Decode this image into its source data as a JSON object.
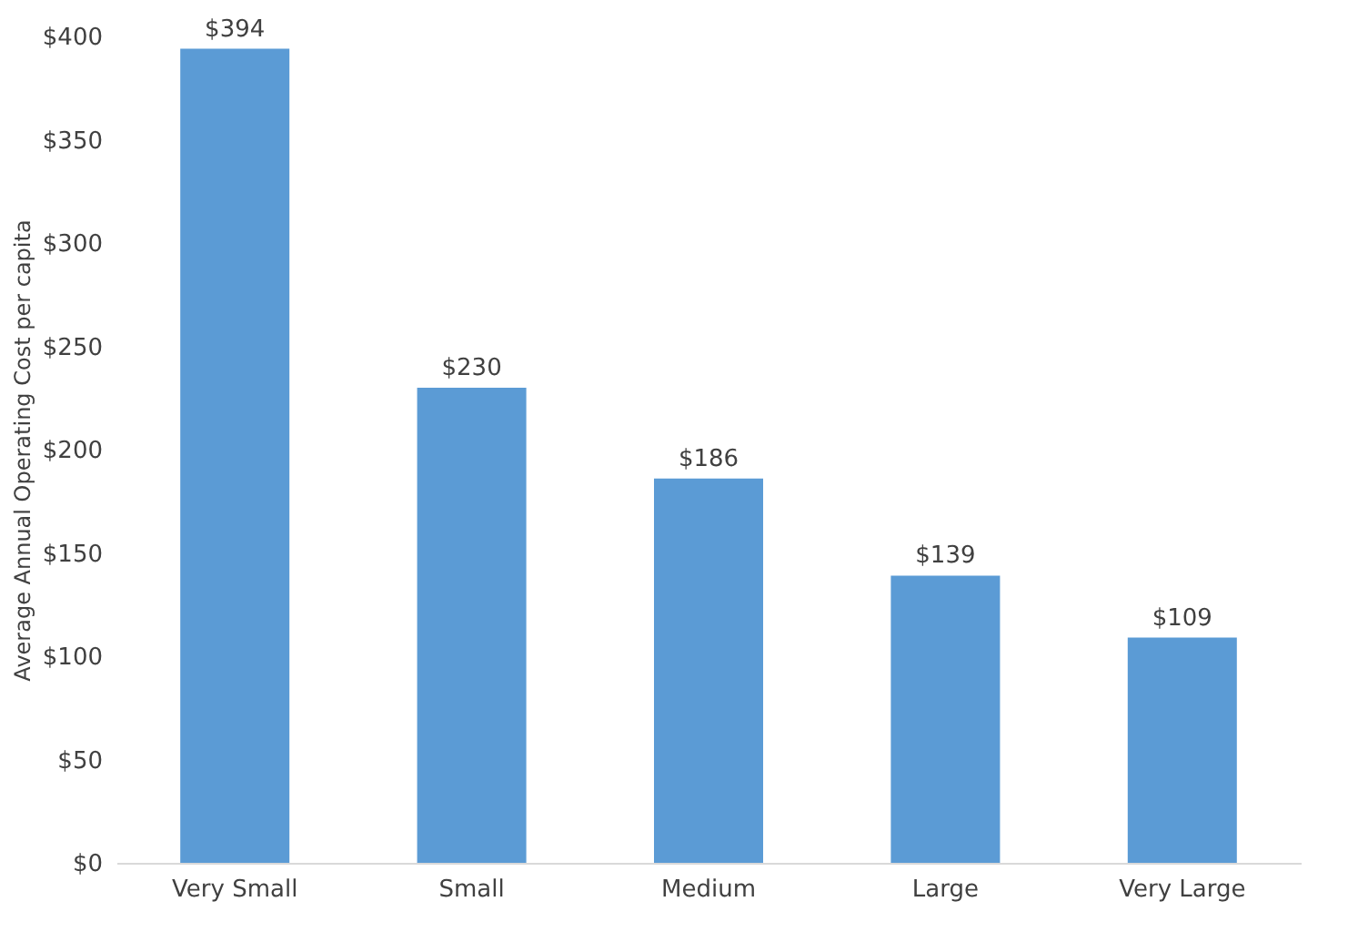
{
  "chart_data": {
    "type": "bar",
    "ylabel": "Average Annual Operating Cost per capita",
    "categories": [
      "Very Small",
      "Small",
      "Medium",
      "Large",
      "Very Large"
    ],
    "values": [
      394,
      230,
      186,
      139,
      109
    ],
    "value_labels": [
      "$394",
      "$230",
      "$186",
      "$139",
      "$109"
    ],
    "color": "#5b9bd5",
    "ylim": [
      0,
      400
    ],
    "yticks": [
      {
        "value": 0,
        "label": "$0"
      },
      {
        "value": 50,
        "label": "$50"
      },
      {
        "value": 100,
        "label": "$100"
      },
      {
        "value": 150,
        "label": "$150"
      },
      {
        "value": 200,
        "label": "$200"
      },
      {
        "value": 250,
        "label": "$250"
      },
      {
        "value": 300,
        "label": "$300"
      },
      {
        "value": 350,
        "label": "$350"
      },
      {
        "value": 400,
        "label": "$400"
      }
    ],
    "grid": false
  }
}
